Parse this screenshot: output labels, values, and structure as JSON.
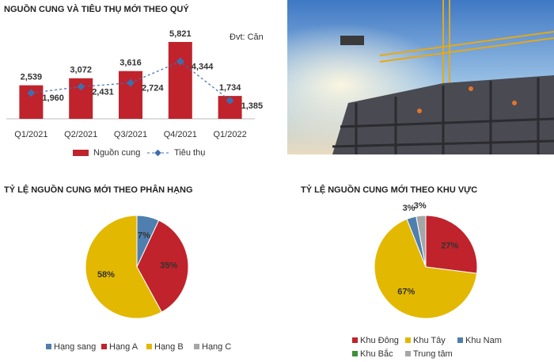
{
  "chart_data": [
    {
      "type": "combo",
      "title": "NGUỒN CUNG VÀ TIÊU THỤ MỚI THEO QUÝ",
      "unit_note": "Đvt: Căn",
      "categories": [
        "Q1/2021",
        "Q2/2021",
        "Q3/2021",
        "Q4/2021",
        "Q1/2022"
      ],
      "ylim": [
        0,
        6000
      ],
      "series": [
        {
          "name": "Nguồn cung",
          "type": "bar",
          "color": "#c0232b",
          "values": [
            2539,
            3072,
            3616,
            5821,
            1734
          ],
          "value_labels": [
            "2,539",
            "3,072",
            "3,616",
            "5,821",
            "1,734"
          ]
        },
        {
          "name": "Tiêu thụ",
          "type": "line",
          "color": "#3d6fb0",
          "values": [
            1960,
            2431,
            2724,
            4344,
            1385
          ],
          "value_labels": [
            "1,960",
            "2,431",
            "2,724",
            "4,344",
            "1,385"
          ]
        }
      ]
    },
    {
      "type": "pie",
      "title": "TỶ LỆ NGUỒN CUNG MỚI THEO PHÂN HẠNG",
      "categories": [
        "Hạng sang",
        "Hạng A",
        "Hạng B",
        "Hạng C"
      ],
      "values": [
        7,
        35,
        58,
        0
      ],
      "value_labels": [
        "7%",
        "35%",
        "58%",
        null
      ],
      "colors": [
        "#4f7faf",
        "#c0232b",
        "#e3b800",
        "#a6a6a6"
      ]
    },
    {
      "type": "pie",
      "title": "TỶ LỆ NGUỒN CUNG MỚI THEO KHU VỰC",
      "categories": [
        "Khu Đông",
        "Khu Tây",
        "Khu Nam",
        "Khu Bắc",
        "Trung tâm"
      ],
      "values": [
        27,
        67,
        3,
        0,
        3
      ],
      "value_labels": [
        "27%",
        "67%",
        "3%",
        null,
        "3%"
      ],
      "colors": [
        "#c0232b",
        "#e3b800",
        "#4f7faf",
        "#3f8f3a",
        "#a6a6a6"
      ]
    }
  ]
}
